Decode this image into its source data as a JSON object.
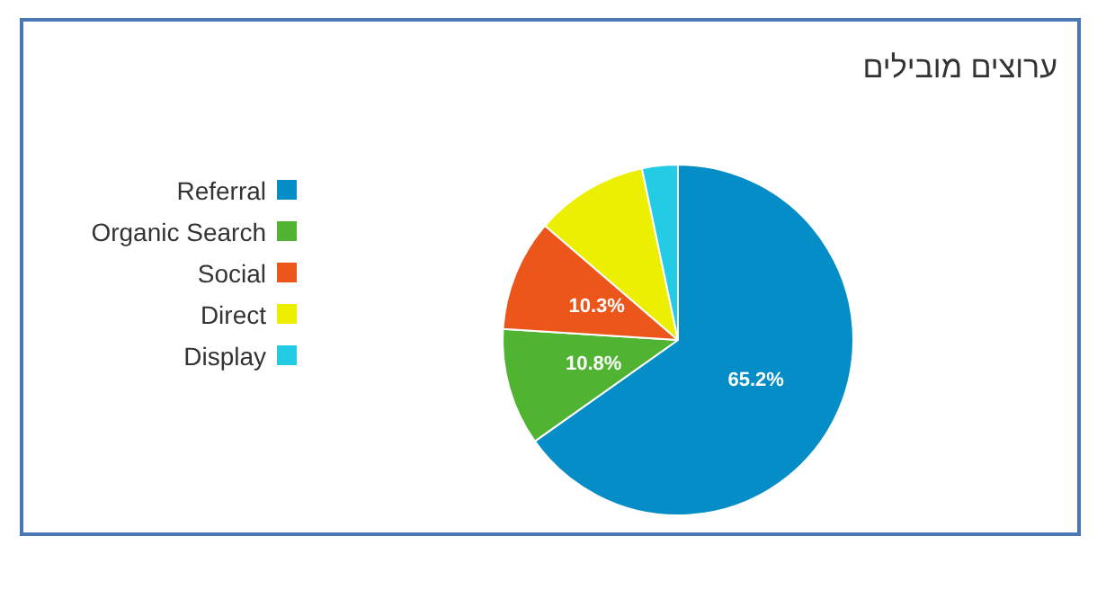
{
  "chart_data": {
    "type": "pie",
    "title": "ערוצים מובילים",
    "categories": [
      "Referral",
      "Organic Search",
      "Social",
      "Direct",
      "Display"
    ],
    "values": [
      65.2,
      10.8,
      10.3,
      10.4,
      3.3
    ],
    "colors": [
      "#058dc7",
      "#50b432",
      "#ed561b",
      "#edef00",
      "#24cbe5"
    ],
    "value_labels": [
      "65.2%",
      "10.8%",
      "10.3%",
      null,
      null
    ],
    "legend": "left"
  }
}
